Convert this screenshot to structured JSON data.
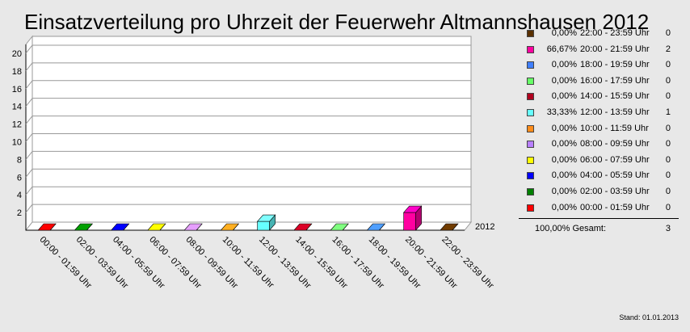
{
  "title": "Einsatzverteilung pro Uhrzeit der Feuerwehr Altmannshausen 2012",
  "footer": "Stand: 01.01.2013",
  "chart_data": {
    "type": "bar",
    "title": "Einsatzverteilung pro Uhrzeit der Feuerwehr Altmannshausen 2012",
    "categories": [
      "00:00 - 01:59 Uhr",
      "02:00 - 03:59 Uhr",
      "04:00 - 05:59 Uhr",
      "06:00 - 07:59 Uhr",
      "08:00 - 09:59 Uhr",
      "10:00 - 11:59 Uhr",
      "12:00 - 13:59 Uhr",
      "14:00 - 15:59 Uhr",
      "16:00 - 17:59 Uhr",
      "18:00 - 19:59 Uhr",
      "20:00 - 21:59 Uhr",
      "22:00 - 23:59 Uhr"
    ],
    "series": [
      {
        "name": "2012",
        "values": [
          0,
          0,
          0,
          0,
          0,
          0,
          1,
          0,
          0,
          0,
          2,
          0
        ]
      }
    ],
    "colors": [
      "#ff0000",
      "#008000",
      "#0000ff",
      "#ffff00",
      "#b87fff",
      "#ff8c1a",
      "#66ffff",
      "#b0001e",
      "#66ff66",
      "#3f7fff",
      "#ff00a0",
      "#5a3000"
    ],
    "ylim": [
      0,
      21
    ],
    "yticks": [
      2,
      4,
      6,
      8,
      10,
      12,
      14,
      16,
      18,
      20
    ],
    "grid": true,
    "legend_position": "right",
    "legend": [
      {
        "pct": "0,00%",
        "label": "22:00 - 23:59 Uhr",
        "count": "0",
        "color": "#5a3000"
      },
      {
        "pct": "66,67%",
        "label": "20:00 - 21:59 Uhr",
        "count": "2",
        "color": "#ff00a0"
      },
      {
        "pct": "0,00%",
        "label": "18:00 - 19:59 Uhr",
        "count": "0",
        "color": "#3f7fff"
      },
      {
        "pct": "0,00%",
        "label": "16:00 - 17:59 Uhr",
        "count": "0",
        "color": "#66ff66"
      },
      {
        "pct": "0,00%",
        "label": "14:00 - 15:59 Uhr",
        "count": "0",
        "color": "#b0001e"
      },
      {
        "pct": "33,33%",
        "label": "12:00 - 13:59 Uhr",
        "count": "1",
        "color": "#66ffff"
      },
      {
        "pct": "0,00%",
        "label": "10:00 - 11:59 Uhr",
        "count": "0",
        "color": "#ff8c1a"
      },
      {
        "pct": "0,00%",
        "label": "08:00 - 09:59 Uhr",
        "count": "0",
        "color": "#b87fff"
      },
      {
        "pct": "0,00%",
        "label": "06:00 - 07:59 Uhr",
        "count": "0",
        "color": "#ffff00"
      },
      {
        "pct": "0,00%",
        "label": "04:00 - 05:59 Uhr",
        "count": "0",
        "color": "#0000ff"
      },
      {
        "pct": "0,00%",
        "label": "02:00 - 03:59 Uhr",
        "count": "0",
        "color": "#008000"
      },
      {
        "pct": "0,00%",
        "label": "00:00 - 01:59 Uhr",
        "count": "0",
        "color": "#ff0000"
      }
    ],
    "total": {
      "label": "100,00% Gesamt:",
      "count": "3"
    }
  }
}
